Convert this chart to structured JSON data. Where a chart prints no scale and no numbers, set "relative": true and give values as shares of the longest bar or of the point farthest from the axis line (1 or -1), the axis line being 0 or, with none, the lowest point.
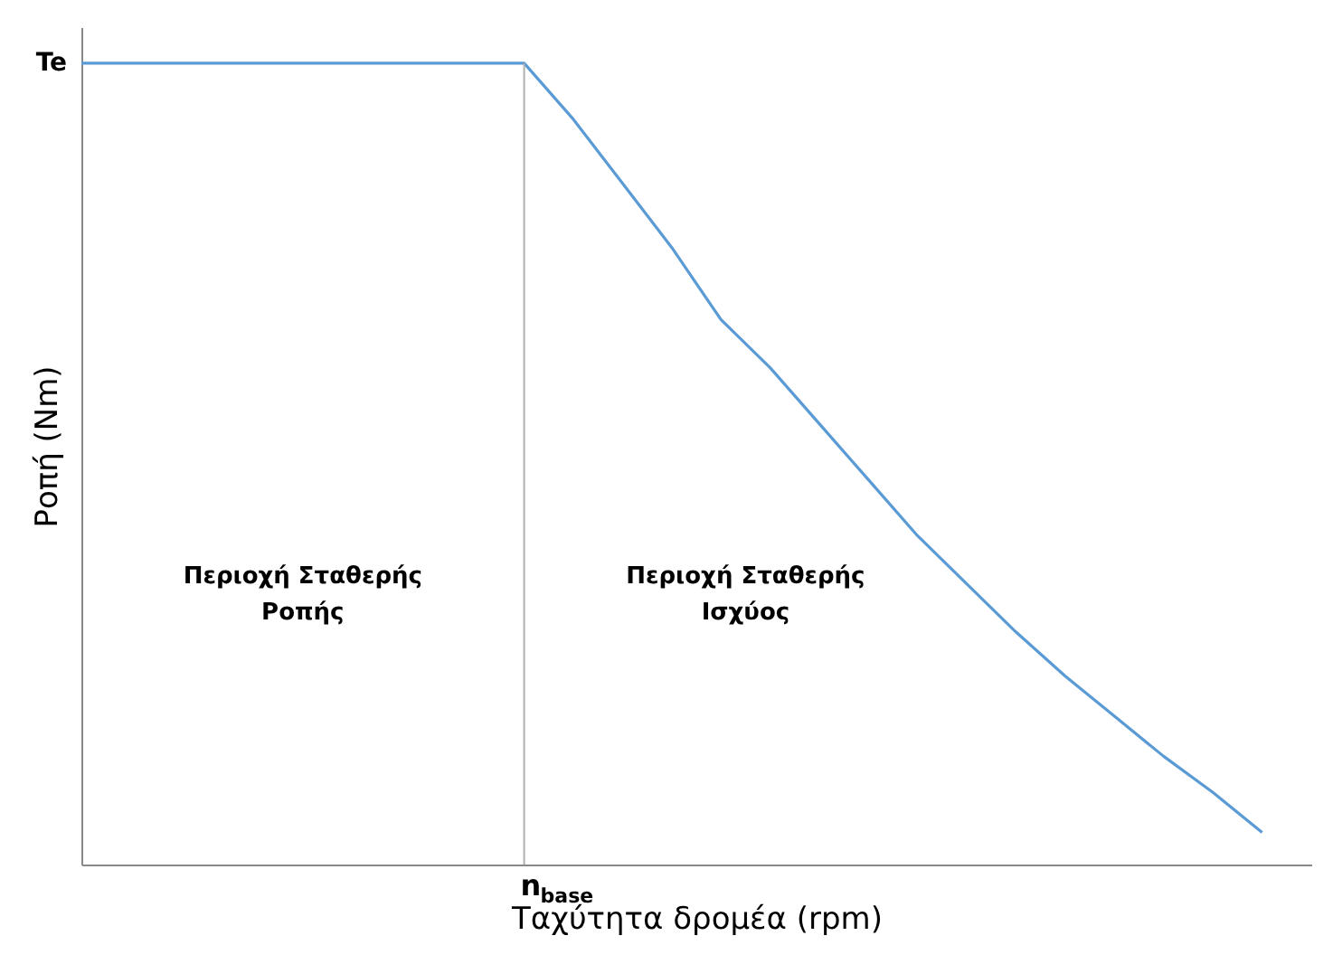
{
  "chart_data": {
    "type": "line",
    "relative": true,
    "xlabel": "Ταχύτητα δρομέα (rpm)",
    "ylabel": "Ροπή (Nm)",
    "categories": [
      null,
      null,
      null,
      null,
      null,
      null,
      null,
      null,
      null,
      null,
      null,
      null,
      null,
      null,
      null,
      null,
      null,
      null,
      null,
      null,
      null,
      null,
      null,
      null,
      null
    ],
    "series": [
      {
        "color": "#5b9bd5",
        "values": [
          1,
          1,
          1,
          1,
          1,
          1,
          1,
          1,
          1,
          1,
          0.93,
          0.85,
          0.77,
          0.68,
          0.62,
          0.55,
          0.48,
          0.41,
          0.35,
          0.29,
          0.235,
          0.185,
          0.135,
          0.09,
          0.04
        ]
      }
    ],
    "annotations": [
      "Te",
      "n$_{base}$",
      "Περιοχή Σταθερής\nΡοπής",
      "Περιοχή Σταθερής\nΙσχύος"
    ],
    "grid": false,
    "marker": "none",
    "line_style": "solid"
  }
}
